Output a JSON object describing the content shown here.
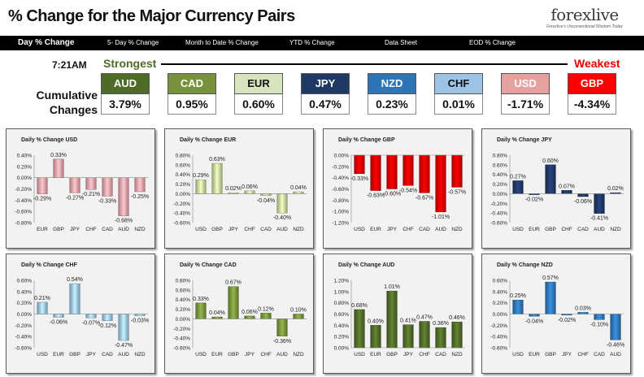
{
  "header": {
    "title": "% Change for the Major Currency Pairs",
    "logo_brand": "forexlive",
    "logo_tagline": "Forexlive's Unconventional Wisdom Today"
  },
  "nav": [
    {
      "label": "Day % Change",
      "active": true
    },
    {
      "label": "5- Day % Change",
      "active": false
    },
    {
      "label": "Month to Date % Change",
      "active": false
    },
    {
      "label": "YTD % Change",
      "active": false
    },
    {
      "label": "Data Sheet",
      "active": false
    },
    {
      "label": "EOD % Change",
      "active": false
    }
  ],
  "summary": {
    "time": "7:21AM",
    "strongest_label": "Strongest",
    "weakest_label": "Weakest",
    "row_label_line1": "Cumulative",
    "row_label_line2": "Changes",
    "cells": [
      {
        "currency": "AUD",
        "value": "3.79%",
        "bg": "#4f6b28",
        "fg": "#ffffff"
      },
      {
        "currency": "CAD",
        "value": "0.95%",
        "bg": "#76933c",
        "fg": "#ffffff"
      },
      {
        "currency": "EUR",
        "value": "0.60%",
        "bg": "#d7e4bd",
        "fg": "#111111"
      },
      {
        "currency": "JPY",
        "value": "0.47%",
        "bg": "#1f3864",
        "fg": "#ffffff"
      },
      {
        "currency": "NZD",
        "value": "0.23%",
        "bg": "#2e75b6",
        "fg": "#ffffff"
      },
      {
        "currency": "CHF",
        "value": "0.01%",
        "bg": "#9dc3e6",
        "fg": "#111111"
      },
      {
        "currency": "USD",
        "value": "-1.71%",
        "bg": "#e6a0a0",
        "fg": "#ffffff"
      },
      {
        "currency": "GBP",
        "value": "-4.34%",
        "bg": "#ff0000",
        "fg": "#ffffff"
      }
    ]
  },
  "chart_data": [
    {
      "type": "bar",
      "title": "Daily % Change USD",
      "color": "#e6a0a6",
      "categories": [
        "EUR",
        "GBP",
        "JPY",
        "CHF",
        "CAD",
        "AUD",
        "NZD"
      ],
      "values": [
        -0.29,
        0.33,
        -0.27,
        -0.21,
        -0.33,
        -0.68,
        -0.25
      ],
      "labels": [
        "-0.29%",
        "0.33%",
        "-0.27%",
        "-0.21%",
        "-0.33%",
        "-0.68%",
        "-0.25%"
      ],
      "ylim": [
        -0.8,
        0.4
      ],
      "yticks": [
        0.4,
        0.2,
        0,
        -0.2,
        -0.4,
        -0.6,
        -0.8
      ],
      "ytick_labels": [
        "0.40%",
        "0.20%",
        "0.00%",
        "-0.20%",
        "-0.40%",
        "-0.60%",
        "-0.80%"
      ]
    },
    {
      "type": "bar",
      "title": "Daily % Change EUR",
      "color": "#c4d79b",
      "categories": [
        "USD",
        "GBP",
        "JPY",
        "CHF",
        "CAD",
        "AUD",
        "NZD"
      ],
      "values": [
        0.29,
        0.63,
        0.02,
        0.06,
        -0.04,
        -0.4,
        0.04
      ],
      "labels": [
        "0.29%",
        "0.63%",
        "0.02%",
        "0.06%",
        "-0.04%",
        "-0.40%",
        "0.04%"
      ],
      "ylim": [
        -0.6,
        0.8
      ],
      "yticks": [
        0.8,
        0.6,
        0.4,
        0.2,
        0,
        -0.2,
        -0.4,
        -0.6
      ],
      "ytick_labels": [
        "0.80%",
        "0.60%",
        "0.40%",
        "0.20%",
        "0.00%",
        "-0.20%",
        "-0.40%",
        "-0.60%"
      ]
    },
    {
      "type": "bar",
      "title": "Daily % Change GBP",
      "color": "#e00000",
      "categories": [
        "USD",
        "EUR",
        "JPY",
        "CHF",
        "CAD",
        "AUD",
        "NZD"
      ],
      "values": [
        -0.33,
        -0.63,
        -0.6,
        -0.54,
        -0.67,
        -1.01,
        -0.57
      ],
      "labels": [
        "-0.33%",
        "-0.63%",
        "-0.60%",
        "-0.54%",
        "-0.67%",
        "-1.01%",
        "-0.57%"
      ],
      "ylim": [
        -1.2,
        0
      ],
      "yticks": [
        0,
        -0.2,
        -0.4,
        -0.6,
        -0.8,
        -1.0,
        -1.2
      ],
      "ytick_labels": [
        "0.00%",
        "-0.20%",
        "-0.40%",
        "-0.60%",
        "-0.80%",
        "-1.00%",
        "-1.20%"
      ]
    },
    {
      "type": "bar",
      "title": "Daily % Change JPY",
      "color": "#1f3864",
      "categories": [
        "USD",
        "EUR",
        "GBP",
        "CHF",
        "CAD",
        "AUD",
        "NZD"
      ],
      "values": [
        0.27,
        -0.02,
        0.6,
        0.07,
        -0.06,
        -0.41,
        0.02
      ],
      "labels": [
        "0.27%",
        "-0.02%",
        "0.60%",
        "0.07%",
        "-0.06%",
        "-0.41%",
        "0.02%"
      ],
      "ylim": [
        -0.6,
        0.8
      ],
      "yticks": [
        0.8,
        0.6,
        0.4,
        0.2,
        0,
        -0.2,
        -0.4,
        -0.6
      ],
      "ytick_labels": [
        "0.80%",
        "0.60%",
        "0.40%",
        "0.20%",
        "0.00%",
        "-0.20%",
        "-0.40%",
        "-0.60%"
      ]
    },
    {
      "type": "bar",
      "title": "Daily % Change CHF",
      "color": "#9dc3e6",
      "categories": [
        "USD",
        "EUR",
        "GBP",
        "JPY",
        "CAD",
        "AUD",
        "NZD"
      ],
      "values": [
        0.21,
        -0.06,
        0.54,
        -0.07,
        -0.12,
        -0.47,
        -0.03
      ],
      "labels": [
        "0.21%",
        "-0.06%",
        "0.54%",
        "-0.07%",
        "-0.12%",
        "-0.47%",
        "-0.03%"
      ],
      "ylim": [
        -0.6,
        0.6
      ],
      "yticks": [
        0.6,
        0.4,
        0.2,
        0,
        -0.2,
        -0.4,
        -0.6
      ],
      "ytick_labels": [
        "0.60%",
        "0.40%",
        "0.20%",
        "0.00%",
        "-0.20%",
        "-0.40%",
        "-0.60%"
      ]
    },
    {
      "type": "bar",
      "title": "Daily % Change CAD",
      "color": "#76933c",
      "categories": [
        "USD",
        "EUR",
        "GBP",
        "JPY",
        "CHF",
        "AUD",
        "NZD"
      ],
      "values": [
        0.33,
        0.04,
        0.67,
        0.06,
        0.12,
        -0.36,
        0.1
      ],
      "labels": [
        "0.33%",
        "0.04%",
        "0.67%",
        "0.06%",
        "0.12%",
        "-0.36%",
        "0.10%"
      ],
      "ylim": [
        -0.6,
        0.8
      ],
      "yticks": [
        0.8,
        0.6,
        0.4,
        0.2,
        0,
        -0.2,
        -0.4,
        -0.6
      ],
      "ytick_labels": [
        "0.80%",
        "0.60%",
        "0.40%",
        "0.20%",
        "0.00%",
        "-0.20%",
        "-0.40%",
        "-0.60%"
      ]
    },
    {
      "type": "bar",
      "title": "Daily % Change AUD",
      "color": "#4f6b28",
      "categories": [
        "USD",
        "EUR",
        "GBP",
        "JPY",
        "CHF",
        "CAD",
        "NZD"
      ],
      "values": [
        0.68,
        0.4,
        1.01,
        0.41,
        0.47,
        0.36,
        0.46
      ],
      "labels": [
        "0.68%",
        "0.40%",
        "1.01%",
        "0.41%",
        "0.47%",
        "0.36%",
        "0.46%"
      ],
      "ylim": [
        0,
        1.2
      ],
      "yticks": [
        1.2,
        1.0,
        0.8,
        0.6,
        0.4,
        0.2,
        0
      ],
      "ytick_labels": [
        "1.20%",
        "1.00%",
        "0.80%",
        "0.60%",
        "0.40%",
        "0.20%",
        "0.00%"
      ]
    },
    {
      "type": "bar",
      "title": "Daily % Change NZD",
      "color": "#2e75b6",
      "categories": [
        "USD",
        "EUR",
        "GBP",
        "JPY",
        "CHF",
        "CAD",
        "AUD"
      ],
      "values": [
        0.25,
        -0.04,
        0.57,
        -0.02,
        0.03,
        -0.1,
        -0.46
      ],
      "labels": [
        "0.25%",
        "-0.04%",
        "0.57%",
        "-0.02%",
        "0.03%",
        "-0.10%",
        "-0.46%"
      ],
      "ylim": [
        -0.6,
        0.6
      ],
      "yticks": [
        0.6,
        0.4,
        0.2,
        0,
        -0.2,
        -0.4,
        -0.6
      ],
      "ytick_labels": [
        "0.60%",
        "0.40%",
        "0.20%",
        "0.00%",
        "-0.20%",
        "-0.40%",
        "-0.60%"
      ]
    }
  ]
}
